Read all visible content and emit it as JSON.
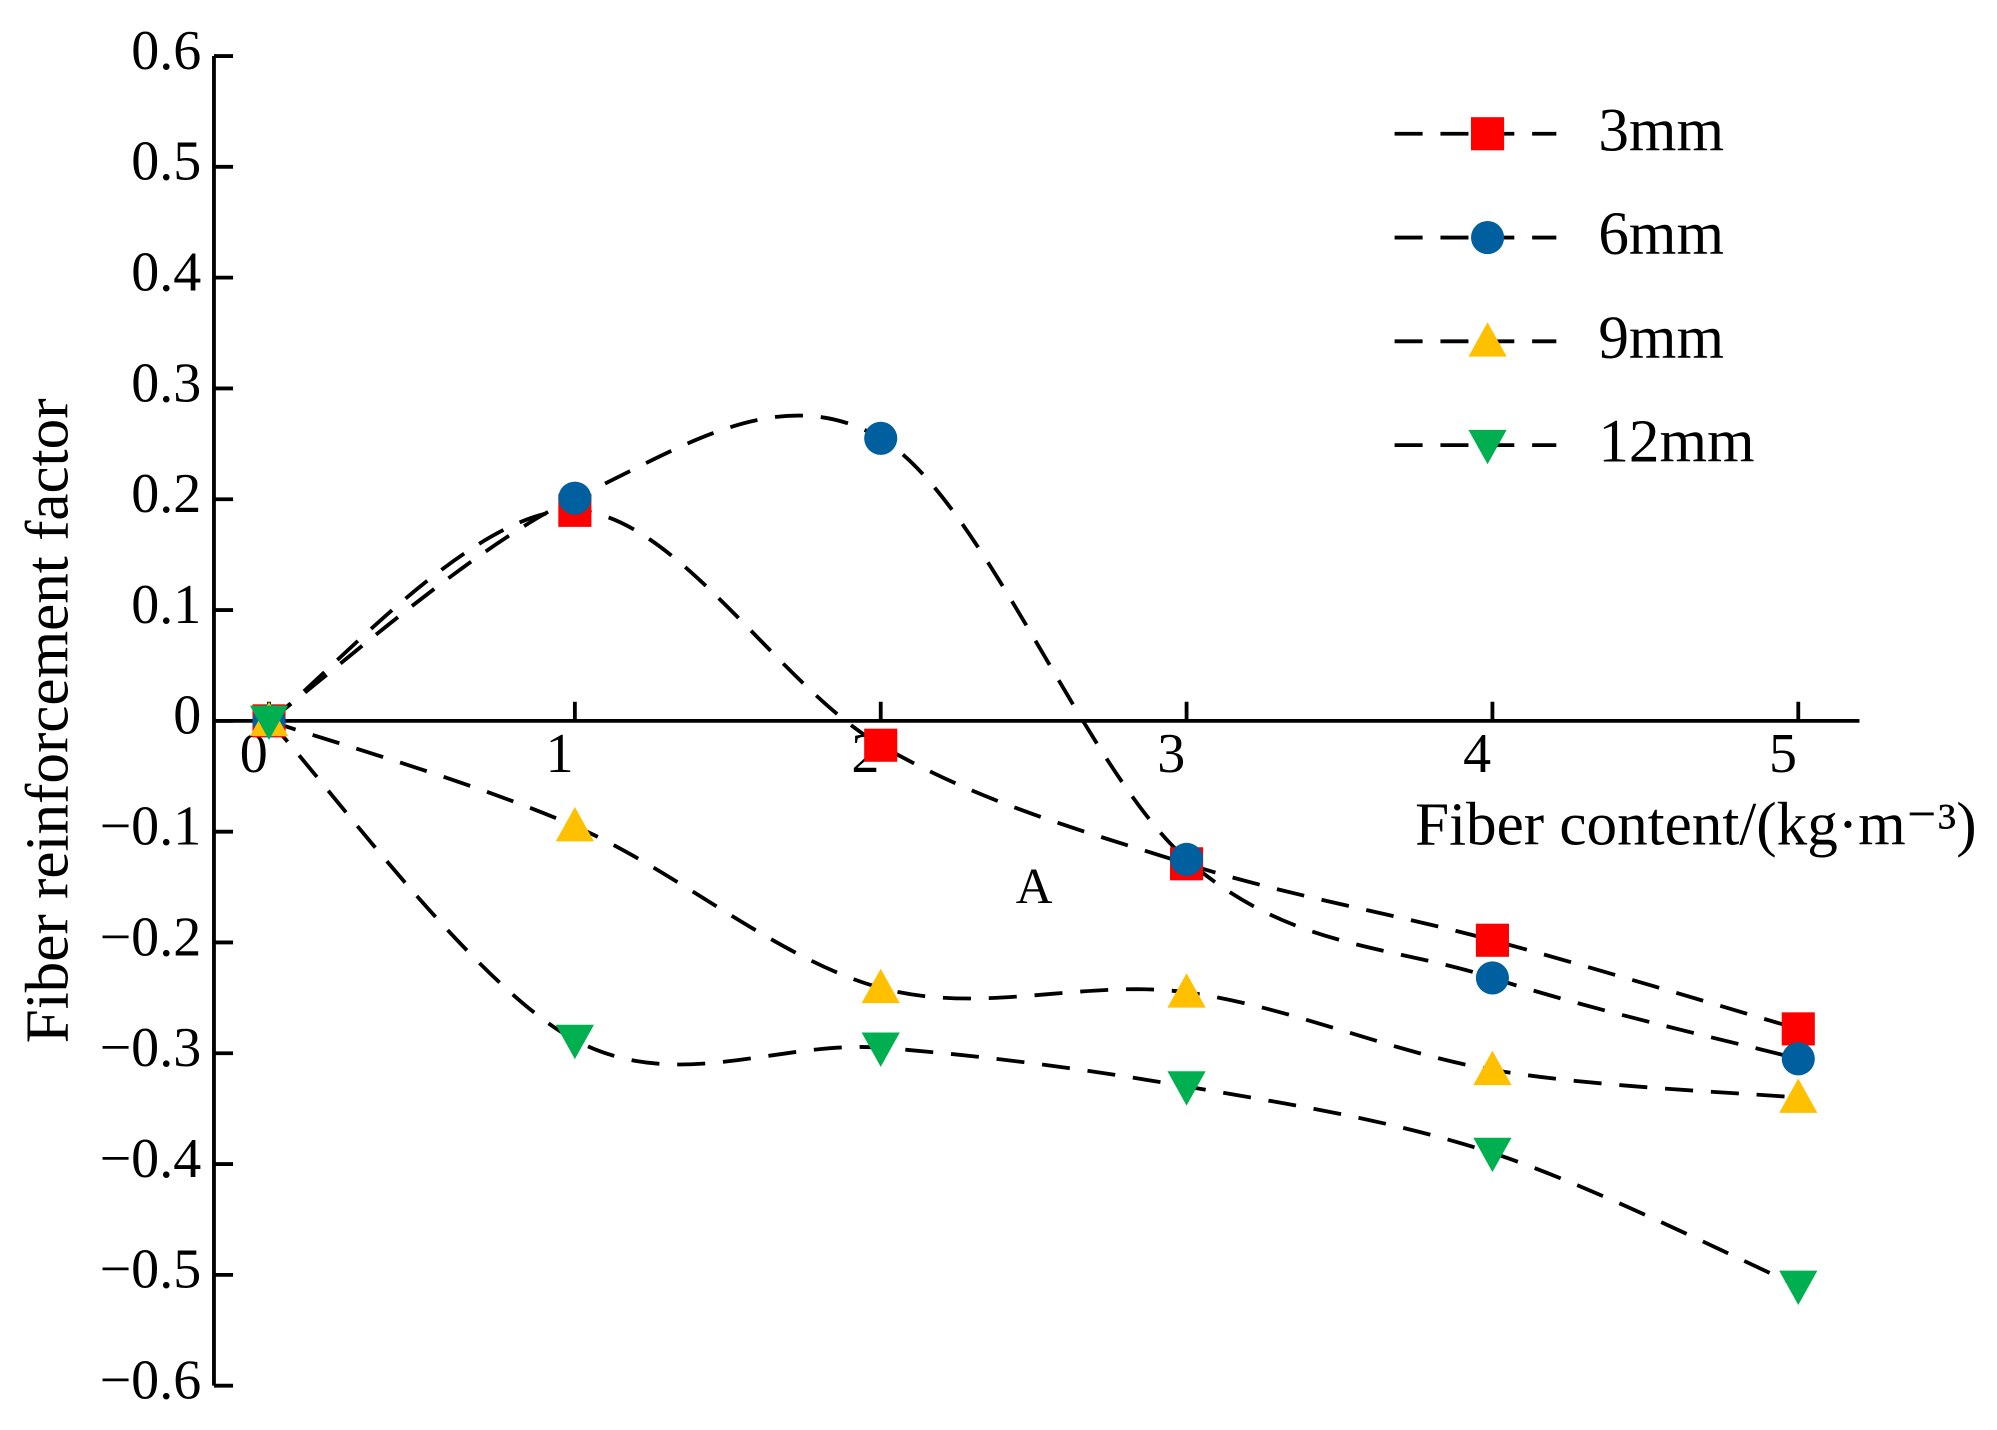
{
  "chart_data": {
    "type": "line",
    "xlabel": "Fiber content/(kg·m⁻³)",
    "ylabel": "Fiber reinforcement factor",
    "annotation": "A",
    "x": [
      0,
      1,
      2,
      3,
      4,
      5
    ],
    "xlim": [
      -0.18,
      5.2
    ],
    "xticks": [
      0,
      1,
      2,
      3,
      4,
      5
    ],
    "ylim": [
      -0.6,
      0.6
    ],
    "yticks": [
      {
        "value": -0.6,
        "label": "−0.6"
      },
      {
        "value": -0.5,
        "label": "−0.5"
      },
      {
        "value": -0.4,
        "label": "−0.4"
      },
      {
        "value": -0.3,
        "label": "−0.3"
      },
      {
        "value": -0.2,
        "label": "−0.2"
      },
      {
        "value": -0.1,
        "label": "−0.1"
      },
      0,
      0.1,
      0.2,
      0.3,
      0.4,
      0.5,
      0.6
    ],
    "series": [
      {
        "name": "3mm",
        "color": "#ff0000",
        "marker": "square",
        "values": [
          0,
          0.19,
          -0.022,
          -0.129,
          -0.198,
          -0.278
        ]
      },
      {
        "name": "6mm",
        "color": "#005f9e",
        "marker": "circle",
        "values": [
          0,
          0.201,
          0.255,
          -0.125,
          -0.232,
          -0.305
        ]
      },
      {
        "name": "9mm",
        "color": "#ffc000",
        "marker": "triangle-up",
        "values": [
          0,
          -0.095,
          -0.241,
          -0.245,
          -0.315,
          -0.34
        ]
      },
      {
        "name": "12mm",
        "color": "#00b050",
        "marker": "triangle-down",
        "values": [
          0,
          -0.288,
          -0.295,
          -0.33,
          -0.39,
          -0.51
        ]
      }
    ]
  }
}
